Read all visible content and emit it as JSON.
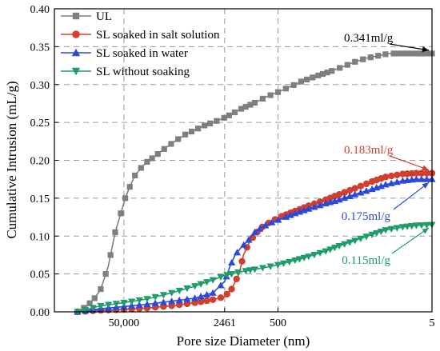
{
  "chart_data": {
    "type": "line",
    "xlabel": "Pore size Diameter (nm)",
    "ylabel": "Cumulative Intrusion (mL/g)",
    "ylim": [
      0,
      0.4
    ],
    "yticks": [
      "0.00",
      "0.05",
      "0.10",
      "0.15",
      "0.20",
      "0.25",
      "0.30",
      "0.35",
      "0.40"
    ],
    "x_axis": "log-reversed",
    "xlim": [
      400000,
      5
    ],
    "xticks": [
      {
        "value": 50000,
        "label": "50,000"
      },
      {
        "value": 2461,
        "label": "2461"
      },
      {
        "value": 500,
        "label": "500"
      },
      {
        "value": 5,
        "label": "5"
      }
    ],
    "grid": "dashed",
    "legend_position": "top-left",
    "series": [
      {
        "name": "UL",
        "color": "#7f7f7f",
        "marker": "square",
        "x": [
          200000,
          150000,
          120000,
          100000,
          80000,
          65000,
          55000,
          48000,
          42000,
          36000,
          30000,
          25000,
          20000,
          15000,
          11000,
          8000,
          6000,
          4500,
          3500,
          2500,
          2000,
          1500,
          1000,
          700,
          500,
          350,
          250,
          150,
          100,
          70,
          50,
          35,
          25,
          18,
          12,
          8,
          5
        ],
        "y": [
          0.0,
          0.008,
          0.018,
          0.03,
          0.06,
          0.105,
          0.13,
          0.15,
          0.165,
          0.18,
          0.19,
          0.198,
          0.205,
          0.215,
          0.225,
          0.234,
          0.24,
          0.246,
          0.25,
          0.256,
          0.261,
          0.268,
          0.276,
          0.284,
          0.29,
          0.297,
          0.304,
          0.312,
          0.318,
          0.324,
          0.33,
          0.335,
          0.338,
          0.341,
          0.341,
          0.341,
          0.341
        ]
      },
      {
        "name": "SL soaked in salt solution",
        "color": "#d13f2f",
        "marker": "circle",
        "x": [
          200000,
          100000,
          50000,
          25000,
          12000,
          6000,
          3500,
          2461,
          2000,
          1600,
          1400,
          1200,
          1000,
          800,
          600,
          450,
          300,
          200,
          120,
          80,
          50,
          30,
          20,
          12,
          8,
          5
        ],
        "y": [
          0.0,
          0.002,
          0.003,
          0.005,
          0.008,
          0.012,
          0.016,
          0.02,
          0.03,
          0.05,
          0.075,
          0.09,
          0.102,
          0.112,
          0.12,
          0.126,
          0.133,
          0.14,
          0.148,
          0.155,
          0.163,
          0.172,
          0.178,
          0.182,
          0.183,
          0.183
        ]
      },
      {
        "name": "SL soaked in water",
        "color": "#2b49d9",
        "marker": "triangle-up",
        "x": [
          200000,
          100000,
          50000,
          25000,
          12000,
          6000,
          3500,
          2461,
          2100,
          1800,
          1500,
          1200,
          1000,
          800,
          600,
          450,
          300,
          200,
          120,
          80,
          50,
          30,
          20,
          12,
          8,
          5
        ],
        "y": [
          0.0,
          0.004,
          0.007,
          0.01,
          0.014,
          0.018,
          0.025,
          0.04,
          0.06,
          0.075,
          0.085,
          0.095,
          0.105,
          0.112,
          0.118,
          0.123,
          0.13,
          0.136,
          0.143,
          0.148,
          0.155,
          0.162,
          0.168,
          0.173,
          0.175,
          0.175
        ]
      },
      {
        "name": "SL without soaking",
        "color": "#1e9c6a",
        "marker": "triangle-down",
        "x": [
          200000,
          100000,
          50000,
          25000,
          12000,
          6000,
          3500,
          2461,
          2000,
          1500,
          1000,
          700,
          500,
          300,
          200,
          120,
          80,
          50,
          30,
          20,
          12,
          8,
          5
        ],
        "y": [
          0.0,
          0.008,
          0.012,
          0.017,
          0.025,
          0.034,
          0.042,
          0.048,
          0.05,
          0.053,
          0.056,
          0.059,
          0.062,
          0.068,
          0.073,
          0.08,
          0.087,
          0.094,
          0.102,
          0.108,
          0.112,
          0.114,
          0.115
        ]
      }
    ],
    "annotations": [
      {
        "text": "0.341ml/g",
        "color": "#000000",
        "target_x": 5,
        "target_y": 0.341
      },
      {
        "text": "0.183ml/g",
        "color": "#d13f2f",
        "target_x": 5,
        "target_y": 0.183
      },
      {
        "text": "0.175ml/g",
        "color": "#2b49d9",
        "target_x": 5,
        "target_y": 0.175
      },
      {
        "text": "0.115ml/g",
        "color": "#1e9c6a",
        "target_x": 5,
        "target_y": 0.115
      }
    ]
  }
}
